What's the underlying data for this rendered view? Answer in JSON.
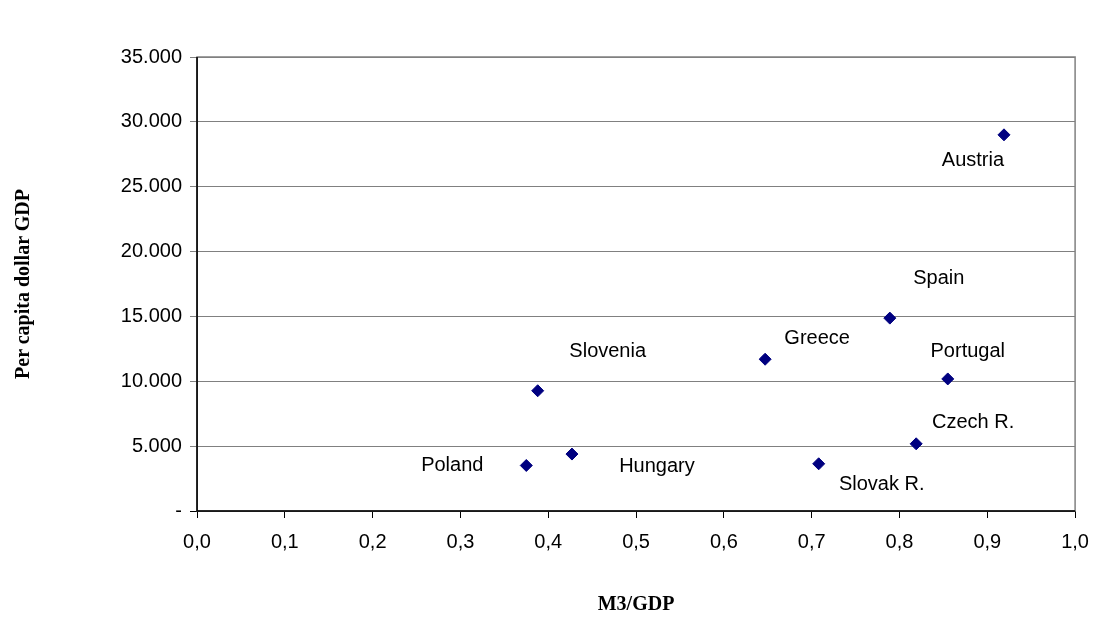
{
  "chart_data": {
    "type": "scatter",
    "xlabel": "M3/GDP",
    "ylabel": "Per capita dollar GDP",
    "series": [
      {
        "color": "#000080",
        "x": [
          0.919,
          0.789,
          0.647,
          0.855,
          0.819,
          0.708,
          0.388,
          0.375,
          0.427
        ],
        "values": [
          29000,
          14870,
          11700,
          10180,
          5180,
          3640,
          9270,
          3510,
          4390
        ]
      }
    ],
    "annotations": [
      {
        "text": "Austria",
        "x": 0.919,
        "y": 29000
      },
      {
        "text": "Spain",
        "x": 0.789,
        "y": 14870
      },
      {
        "text": "Greece",
        "x": 0.647,
        "y": 11700
      },
      {
        "text": "Portugal",
        "x": 0.855,
        "y": 10180
      },
      {
        "text": "Czech R.",
        "x": 0.819,
        "y": 5180
      },
      {
        "text": "Slovak R.",
        "x": 0.708,
        "y": 3640
      },
      {
        "text": "Slovenia",
        "x": 0.388,
        "y": 9270
      },
      {
        "text": "Poland",
        "x": 0.375,
        "y": 3510
      },
      {
        "text": "Hungary",
        "x": 0.427,
        "y": 4390
      }
    ],
    "xlim": [
      0,
      1
    ],
    "xticks": [
      {
        "value": 0,
        "label": "0,0"
      },
      {
        "value": 0.1,
        "label": "0,1"
      },
      {
        "value": 0.2,
        "label": "0,2"
      },
      {
        "value": 0.3,
        "label": "0,3"
      },
      {
        "value": 0.4,
        "label": "0,4"
      },
      {
        "value": 0.5,
        "label": "0,5"
      },
      {
        "value": 0.6,
        "label": "0,6"
      },
      {
        "value": 0.7,
        "label": "0,7"
      },
      {
        "value": 0.8,
        "label": "0,8"
      },
      {
        "value": 0.9,
        "label": "0,9"
      },
      {
        "value": 1,
        "label": "1,0"
      }
    ],
    "ylim": [
      0,
      35000
    ],
    "yticks": [
      {
        "value": 0,
        "label": "-"
      },
      {
        "value": 5000,
        "label": "5.000"
      },
      {
        "value": 10000,
        "label": "10.000"
      },
      {
        "value": 15000,
        "label": "15.000"
      },
      {
        "value": 20000,
        "label": "20.000"
      },
      {
        "value": 25000,
        "label": "25.000"
      },
      {
        "value": 30000,
        "label": "30.000"
      },
      {
        "value": 35000,
        "label": "35.000"
      }
    ],
    "grid": "y",
    "legend": false,
    "marker": "diamond"
  }
}
